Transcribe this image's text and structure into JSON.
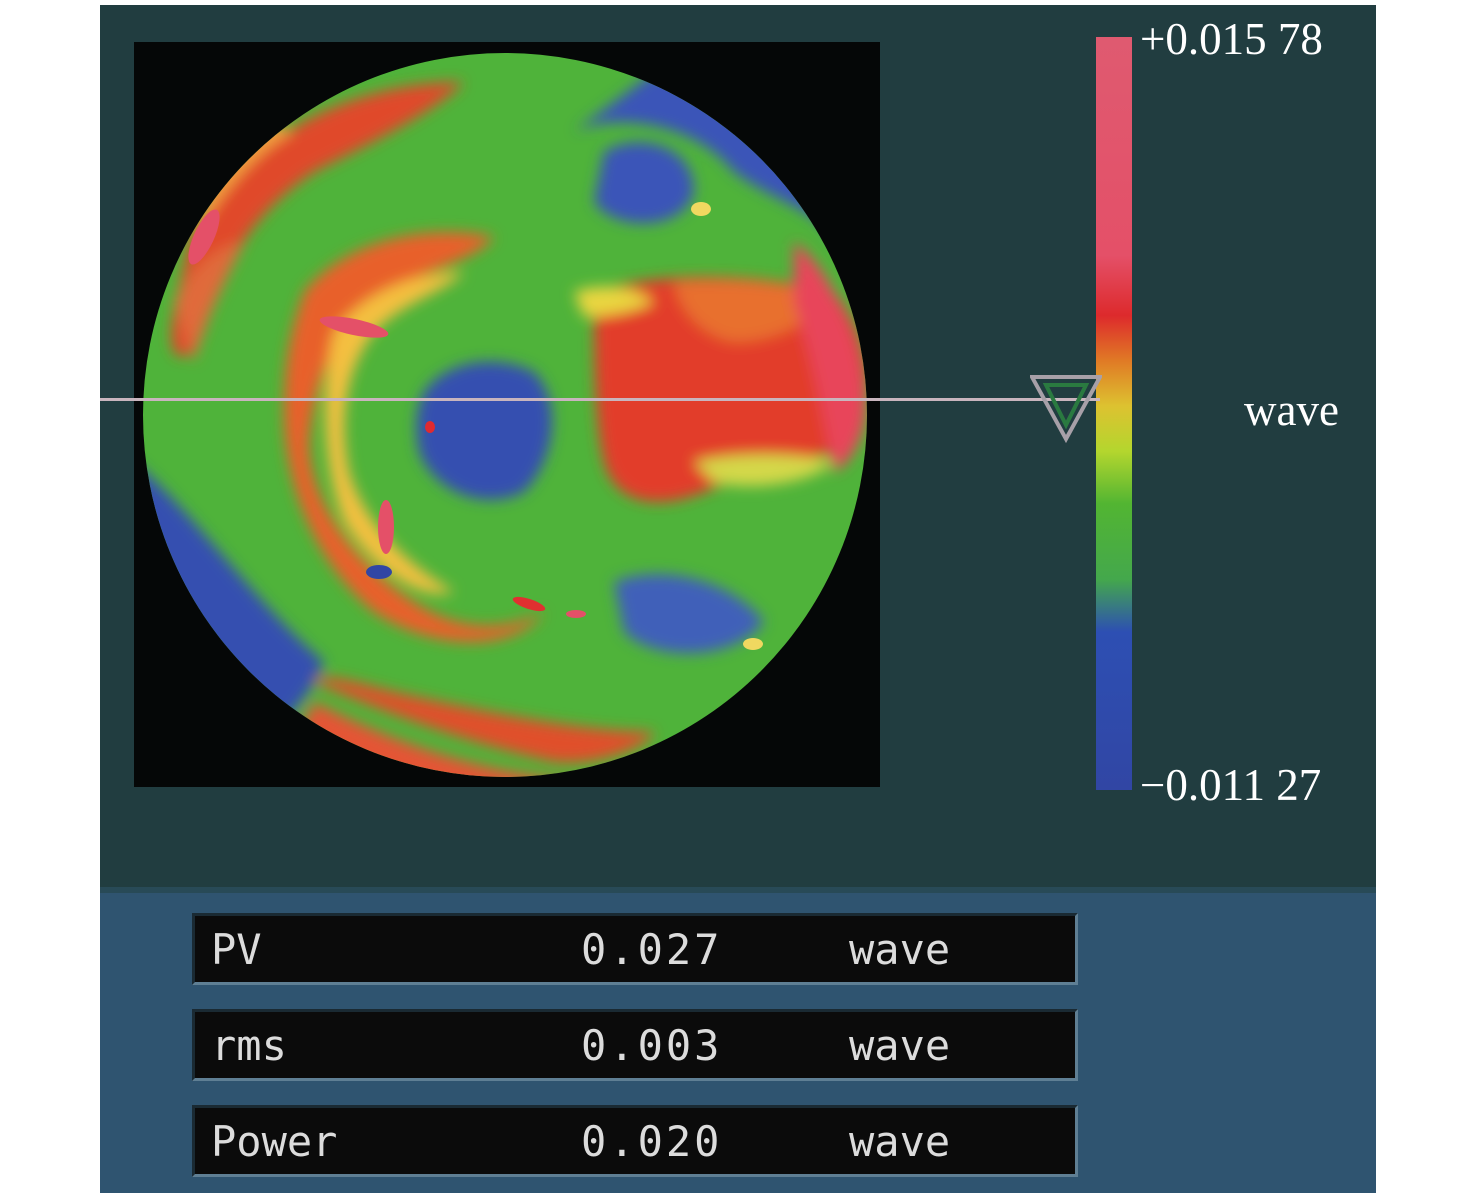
{
  "colorbar": {
    "max_label": "+0.015 78",
    "min_label": "−0.011 27",
    "unit": "wave",
    "colors": [
      "#df5a70",
      "#dd2a2c",
      "#ddc230",
      "#52b532",
      "#3146a4"
    ]
  },
  "stats": [
    {
      "name": "PV",
      "value": "0.027",
      "unit": "wave"
    },
    {
      "name": "rms",
      "value": "0.003",
      "unit": "wave"
    },
    {
      "name": "Power",
      "value": "0.020",
      "unit": "wave"
    }
  ]
}
